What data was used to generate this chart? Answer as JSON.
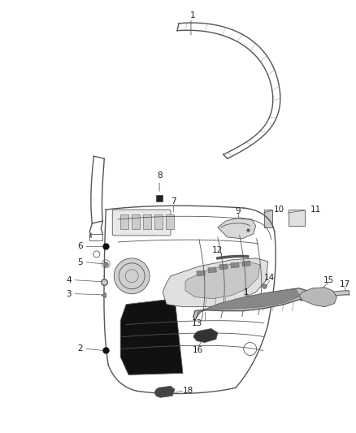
{
  "bg_color": "#ffffff",
  "fig_width": 4.38,
  "fig_height": 5.33,
  "dpi": 100,
  "line_color": "#555555",
  "dark_color": "#222222",
  "label_font": 7.5,
  "lw_main": 1.0,
  "lw_thin": 0.6
}
